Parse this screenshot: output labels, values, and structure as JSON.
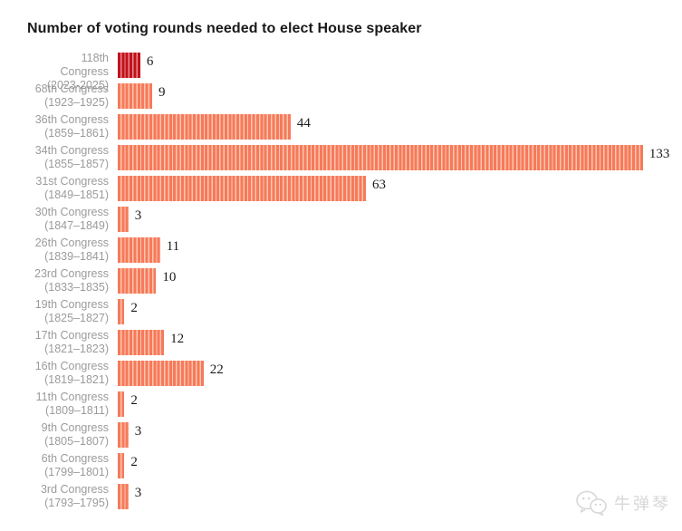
{
  "title": "Number of voting rounds needed to elect House speaker",
  "colors": {
    "bar_stripe": "#f57a5b",
    "bar_gap": "#fdc5ae",
    "highlight_stripe": "#c0121a",
    "highlight_gap": "#e8898f",
    "label_gray": "#9b9b9b",
    "value_text": "#1a1a1a",
    "title_text": "#1a1a1a",
    "watermark_gray": "#d7d7d7"
  },
  "chart_data": {
    "type": "bar",
    "orientation": "horizontal",
    "title": "Number of voting rounds needed to elect House speaker",
    "xlabel": "",
    "ylabel": "",
    "xlim": [
      0,
      133
    ],
    "grid": false,
    "legend": null,
    "bar_style": "unit-striped (one stripe per voting round)",
    "categories": [
      "118th Congress (2023-2025)",
      "68th Congress (1923–1925)",
      "36th Congress (1859–1861)",
      "34th Congress (1855–1857)",
      "31st Congress (1849–1851)",
      "30th Congress (1847–1849)",
      "26th Congress (1839–1841)",
      "23rd Congress (1833–1835)",
      "19th Congress (1825–1827)",
      "17th Congress (1821–1823)",
      "16th Congress (1819–1821)",
      "11th Congress (1809–1811)",
      "9th Congress (1805–1807)",
      "6th Congress (1799–1801)",
      "3rd Congress (1793–1795)"
    ],
    "values": [
      6,
      9,
      44,
      133,
      63,
      3,
      11,
      10,
      2,
      12,
      22,
      2,
      3,
      2,
      3
    ],
    "rows": [
      {
        "name": "118th\nCongress",
        "years": "(2023-2025)",
        "value": 6,
        "highlight": true
      },
      {
        "name": "68th Congress",
        "years": "(1923–1925)",
        "value": 9,
        "highlight": false
      },
      {
        "name": "36th Congress",
        "years": "(1859–1861)",
        "value": 44,
        "highlight": false
      },
      {
        "name": "34th Congress",
        "years": "(1855–1857)",
        "value": 133,
        "highlight": false
      },
      {
        "name": "31st Congress",
        "years": "(1849–1851)",
        "value": 63,
        "highlight": false
      },
      {
        "name": "30th Congress",
        "years": "(1847–1849)",
        "value": 3,
        "highlight": false
      },
      {
        "name": "26th Congress",
        "years": "(1839–1841)",
        "value": 11,
        "highlight": false
      },
      {
        "name": "23rd Congress",
        "years": "(1833–1835)",
        "value": 10,
        "highlight": false
      },
      {
        "name": "19th Congress",
        "years": "(1825–1827)",
        "value": 2,
        "highlight": false
      },
      {
        "name": "17th Congress",
        "years": "(1821–1823)",
        "value": 12,
        "highlight": false
      },
      {
        "name": "16th Congress",
        "years": "(1819–1821)",
        "value": 22,
        "highlight": false
      },
      {
        "name": "11th Congress",
        "years": "(1809–1811)",
        "value": 2,
        "highlight": false
      },
      {
        "name": "9th Congress",
        "years": "(1805–1807)",
        "value": 3,
        "highlight": false
      },
      {
        "name": "6th Congress",
        "years": "(1799–1801)",
        "value": 2,
        "highlight": false
      },
      {
        "name": "3rd Congress",
        "years": "(1793–1795)",
        "value": 3,
        "highlight": false
      }
    ]
  },
  "watermark": {
    "text": "牛弹琴",
    "icon": "wechat-logo-icon"
  }
}
